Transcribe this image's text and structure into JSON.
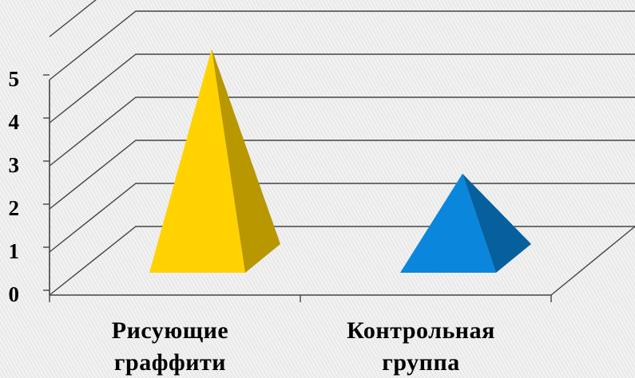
{
  "chart_data": {
    "type": "bar",
    "shape": "pyramid-3d",
    "categories": [
      [
        "Рисующие",
        "граффити"
      ],
      [
        "Контрольная",
        "группа"
      ]
    ],
    "series": [
      {
        "values": [
          5.2,
          2.3
        ]
      }
    ],
    "bar_colors": [
      "#ffd200",
      "#0a86dc"
    ],
    "ylim": [
      0,
      5
    ],
    "yticks": [
      "0",
      "1",
      "2",
      "3",
      "4",
      "5"
    ],
    "grid": true,
    "title": "",
    "xlabel": "",
    "ylabel": ""
  }
}
